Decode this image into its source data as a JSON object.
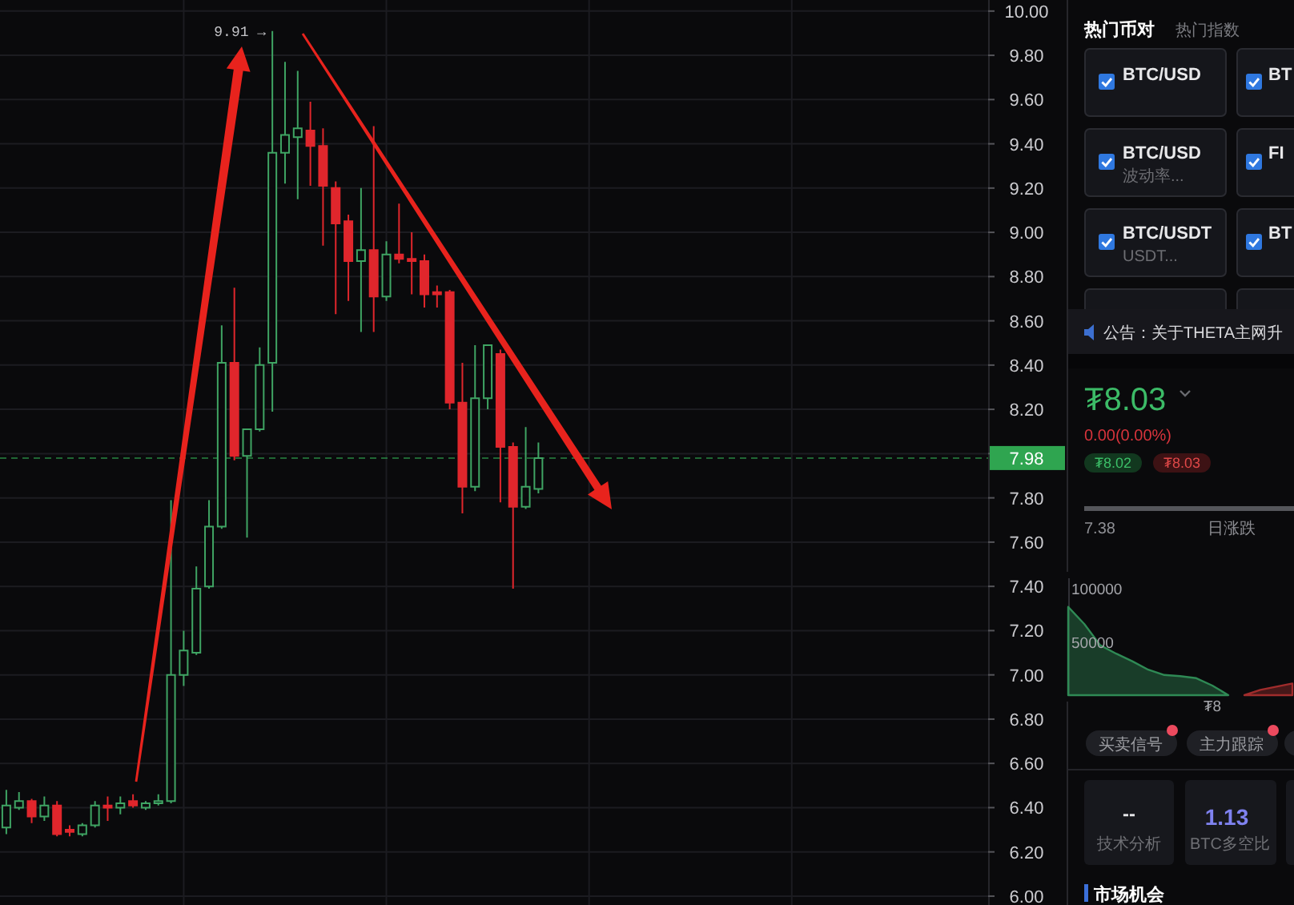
{
  "chart_data": [
    {
      "type": "candlestick",
      "categories": [
        null,
        null,
        null,
        null,
        null,
        null,
        null,
        null,
        null,
        null,
        null,
        null,
        null,
        null,
        null,
        null,
        null,
        null,
        null,
        null,
        null,
        null,
        null,
        null,
        null,
        null,
        null,
        null,
        null,
        null,
        null,
        null,
        null,
        null,
        null,
        null,
        null,
        null,
        null,
        null,
        null,
        null,
        null,
        null,
        null,
        null,
        null,
        null,
        null,
        null,
        null,
        null,
        null,
        null,
        null,
        null,
        null,
        null,
        null,
        null,
        null,
        null,
        null,
        null,
        null,
        null,
        null,
        null,
        null,
        null,
        null,
        null,
        null,
        null,
        null,
        null,
        null,
        null
      ],
      "ohlc": [
        [
          6.31,
          6.48,
          6.28,
          6.41
        ],
        [
          6.4,
          6.47,
          6.39,
          6.43
        ],
        [
          6.43,
          6.44,
          6.33,
          6.36
        ],
        [
          6.36,
          6.45,
          6.34,
          6.41
        ],
        [
          6.41,
          6.43,
          6.27,
          6.28
        ],
        [
          6.3,
          6.32,
          6.27,
          6.29
        ],
        [
          6.28,
          6.33,
          6.27,
          6.32
        ],
        [
          6.32,
          6.43,
          6.31,
          6.41
        ],
        [
          6.41,
          6.45,
          6.34,
          6.4
        ],
        [
          6.4,
          6.45,
          6.37,
          6.42
        ],
        [
          6.43,
          6.46,
          6.4,
          6.41
        ],
        [
          6.4,
          6.43,
          6.39,
          6.42
        ],
        [
          6.42,
          6.46,
          6.41,
          6.43
        ],
        [
          6.43,
          7.79,
          6.42,
          7.0
        ],
        [
          7.0,
          7.2,
          6.95,
          7.11
        ],
        [
          7.1,
          7.49,
          7.09,
          7.39
        ],
        [
          7.4,
          7.79,
          7.39,
          7.67
        ],
        [
          7.67,
          8.58,
          7.66,
          8.41
        ],
        [
          8.41,
          8.75,
          7.97,
          7.99
        ],
        [
          7.99,
          8.11,
          7.62,
          8.11
        ],
        [
          8.11,
          8.48,
          8.1,
          8.4
        ],
        [
          8.41,
          9.91,
          8.19,
          9.36
        ],
        [
          9.36,
          9.77,
          9.22,
          9.44
        ],
        [
          9.43,
          9.73,
          9.15,
          9.47
        ],
        [
          9.46,
          9.59,
          9.21,
          9.39
        ],
        [
          9.39,
          9.47,
          8.94,
          9.21
        ],
        [
          9.2,
          9.23,
          8.63,
          9.04
        ],
        [
          9.05,
          9.08,
          8.69,
          8.87
        ],
        [
          8.87,
          9.2,
          8.55,
          8.92
        ],
        [
          8.92,
          9.48,
          8.55,
          8.71
        ],
        [
          8.71,
          8.96,
          8.69,
          8.9
        ],
        [
          8.9,
          9.13,
          8.86,
          8.88
        ],
        [
          8.88,
          9.0,
          8.72,
          8.87
        ],
        [
          8.87,
          8.9,
          8.66,
          8.72
        ],
        [
          8.73,
          8.76,
          8.66,
          8.72
        ],
        [
          8.73,
          8.74,
          8.2,
          8.23
        ],
        [
          8.23,
          8.41,
          7.73,
          7.85
        ],
        [
          7.85,
          8.49,
          7.83,
          8.25
        ],
        [
          8.25,
          8.49,
          8.2,
          8.49
        ],
        [
          8.45,
          8.47,
          7.78,
          8.03
        ],
        [
          8.03,
          8.05,
          7.39,
          7.76
        ],
        [
          7.76,
          8.12,
          7.75,
          7.85
        ],
        [
          7.84,
          8.05,
          7.82,
          7.98
        ],
        null,
        null,
        null,
        null,
        null,
        null,
        null,
        null,
        null,
        null,
        null,
        null,
        null,
        null,
        null,
        null,
        null,
        null,
        null,
        null,
        null,
        null,
        null,
        null,
        null,
        null,
        null,
        null,
        null,
        null,
        null,
        null,
        null,
        null,
        null
      ],
      "colors": [
        "#3fa463",
        "#3fa463",
        "#e0262c",
        "#3fa463",
        "#e0262c",
        "#e0262c",
        "#3fa463",
        "#3fa463",
        "#e0262c",
        "#3fa463",
        "#e0262c",
        "#3fa463",
        "#3fa463",
        "#3fa463",
        "#3fa463",
        "#3fa463",
        "#3fa463",
        "#3fa463",
        "#e0262c",
        "#3fa463",
        "#3fa463",
        "#3fa463",
        "#3fa463",
        "#3fa463",
        "#e0262c",
        "#e0262c",
        "#e0262c",
        "#e0262c",
        "#3fa463",
        "#e0262c",
        "#3fa463",
        "#e0262c",
        "#e0262c",
        "#e0262c",
        "#e0262c",
        "#e0262c",
        "#e0262c",
        "#3fa463",
        "#3fa463",
        "#e0262c",
        "#e0262c",
        "#3fa463",
        "#3fa463",
        null,
        null,
        null,
        null,
        null,
        null,
        null,
        null,
        null,
        null,
        null,
        null,
        null,
        null,
        null,
        null,
        null,
        null,
        null,
        null,
        null,
        null,
        null,
        null,
        null,
        null,
        null,
        null,
        null,
        null,
        null,
        null,
        null,
        null,
        null
      ],
      "ylim": [
        5.96,
        10.05
      ],
      "yticks": [
        {
          "value": 6,
          "label": "6.00"
        },
        {
          "value": 6.2,
          "label": "6.20"
        },
        {
          "value": 6.4,
          "label": "6.40"
        },
        {
          "value": 6.6,
          "label": "6.60"
        },
        {
          "value": 6.8,
          "label": "6.80"
        },
        {
          "value": 7,
          "label": "7.00"
        },
        {
          "value": 7.2,
          "label": "7.20"
        },
        {
          "value": 7.4,
          "label": "7.40"
        },
        {
          "value": 7.6,
          "label": "7.60"
        },
        {
          "value": 7.8,
          "label": "7.80"
        },
        {
          "value": 8,
          "label": null
        },
        {
          "value": 8.2,
          "label": "8.20"
        },
        {
          "value": 8.4,
          "label": "8.40"
        },
        {
          "value": 8.6,
          "label": "8.60"
        },
        {
          "value": 8.8,
          "label": "8.80"
        },
        {
          "value": 9,
          "label": "9.00"
        },
        {
          "value": 9.2,
          "label": "9.20"
        },
        {
          "value": 9.4,
          "label": "9.40"
        },
        {
          "value": 9.6,
          "label": "9.60"
        },
        {
          "value": 9.8,
          "label": "9.80"
        },
        {
          "value": 10,
          "label": "10.00"
        }
      ],
      "tick_labels": "y",
      "grid": true,
      "ref_lines": [
        {
          "axis": "y",
          "value": 7.98,
          "label": "7.98",
          "color": "#2fa550",
          "line_style": "dashed"
        }
      ],
      "annotations": [
        "9.91 →"
      ]
    },
    {
      "type": "other",
      "annotations": [
        "热门币对",
        "热门指数",
        "BTC/USD",
        "BT",
        "BTC/USD",
        "波动率...",
        "FI",
        "BTC/USDT",
        "USDT...",
        "BT",
        "公告：关于THETA主网升",
        "₮8.03",
        "0.00(0.00%)",
        "₮8.02",
        "₮8.03",
        "7.38",
        "日涨跌"
      ]
    },
    {
      "type": "area",
      "categories": [
        null,
        null,
        null,
        null,
        null,
        null,
        null,
        null,
        null,
        "₮8",
        null,
        null,
        null,
        null,
        null
      ],
      "series": [
        {
          "color": "#2f8a55",
          "values": [
            83000,
            67000,
            47000,
            39000,
            32000,
            24000,
            19000,
            18000,
            16000,
            9000,
            0,
            null,
            null,
            null,
            null
          ]
        },
        {
          "color": "#a02c2c",
          "values": [
            null,
            null,
            null,
            null,
            null,
            null,
            null,
            null,
            null,
            null,
            null,
            0,
            5000,
            8000,
            11000
          ]
        }
      ],
      "ylim": [
        0,
        110000
      ],
      "yticks": [
        50000,
        100000
      ]
    },
    {
      "type": "other",
      "annotations": [
        "买卖信号",
        "主力跟踪",
        "--",
        "技术分析",
        "1.13",
        "BTC多空比",
        "市场机会"
      ]
    }
  ]
}
